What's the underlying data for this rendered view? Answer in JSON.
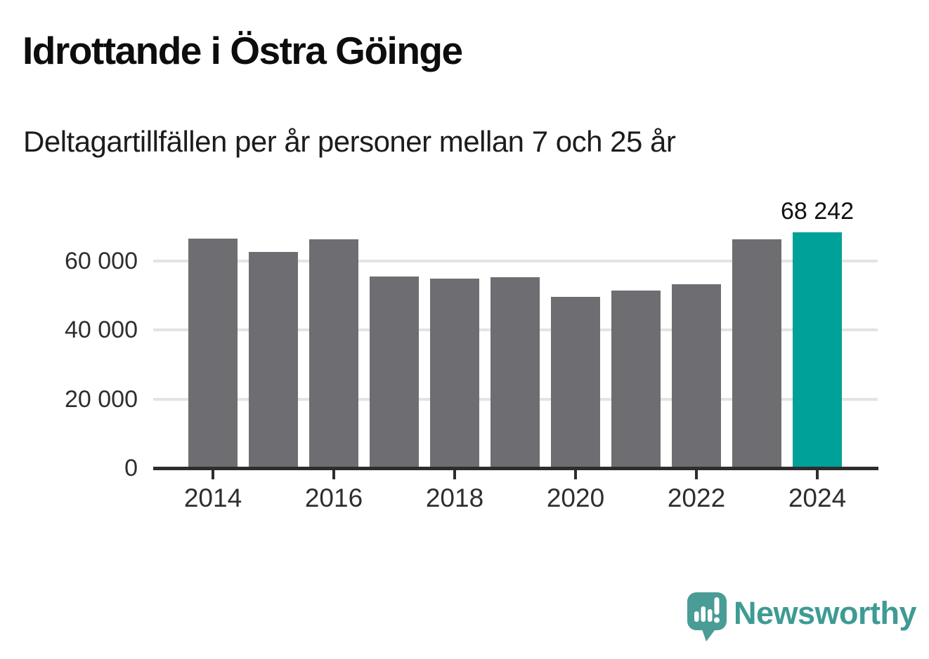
{
  "header": {
    "title": "Idrottande i Östra Göinge",
    "subtitle": "Deltagartillfällen per år personer mellan 7 och 25 år"
  },
  "chart_data": {
    "type": "bar",
    "title": "Idrottande i Östra Göinge",
    "subtitle": "Deltagartillfällen per år personer mellan 7 och 25 år",
    "categories": [
      "2014",
      "2015",
      "2016",
      "2017",
      "2018",
      "2019",
      "2020",
      "2021",
      "2022",
      "2023",
      "2024"
    ],
    "values": [
      66600,
      62700,
      66400,
      55600,
      54900,
      55400,
      49700,
      51500,
      53200,
      66400,
      68242
    ],
    "highlight": {
      "category": "2024",
      "value": 68242,
      "label": "68 242"
    },
    "yticks": [
      0,
      20000,
      40000,
      60000
    ],
    "ytick_labels": [
      "0",
      "20 000",
      "40 000",
      "60 000"
    ],
    "xtick_labels": [
      "2014",
      "2016",
      "2018",
      "2020",
      "2022",
      "2024"
    ],
    "ylim": [
      0,
      70000
    ],
    "grid": true,
    "legend_position": "none",
    "bar_color": "#6e6e72",
    "highlight_color": "#00a198",
    "axis_color": "#2d2d2d",
    "gridline_color": "#e3e3e3",
    "label_color": "#2e2e2e"
  },
  "footer": {
    "brand": "Newsworthy",
    "logo_icon": "newsworthy-speech-bubble-bar-chart-icon",
    "brand_color": "#3e9b94",
    "icon_color": "#4a9c96"
  }
}
